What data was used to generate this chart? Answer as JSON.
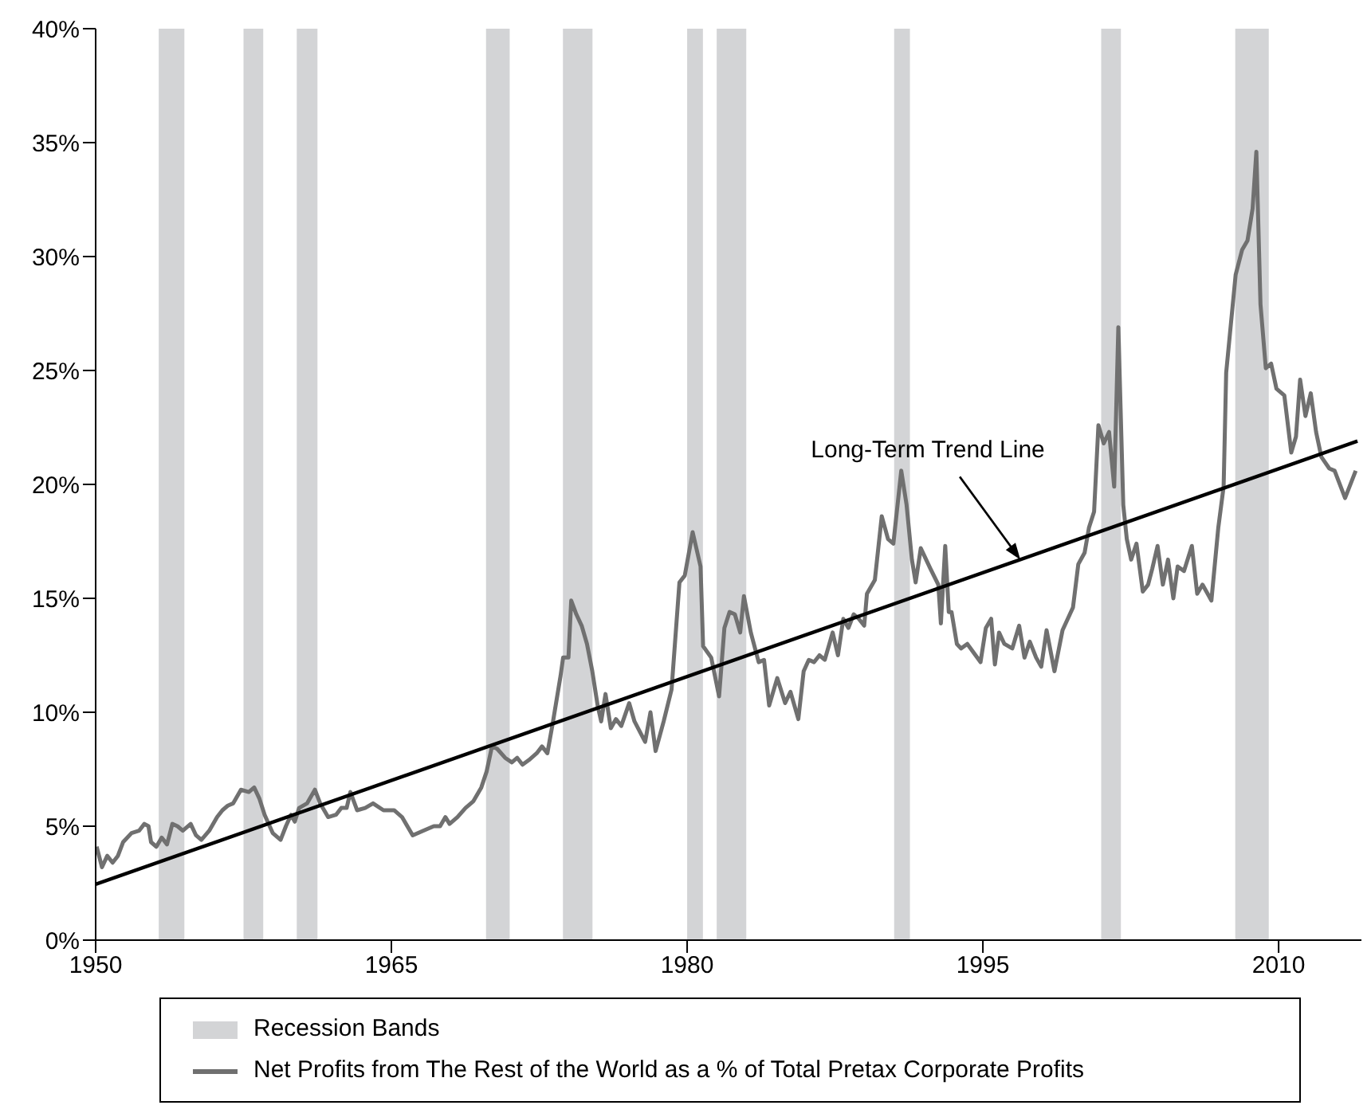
{
  "chart_data": {
    "type": "line",
    "xlim": [
      1950,
      2014.2
    ],
    "xticks": [
      1950,
      1965,
      1980,
      1995,
      2010
    ],
    "ylim": [
      0,
      40
    ],
    "yticks": [
      {
        "value": 0,
        "label": "0%"
      },
      {
        "value": 5,
        "label": "5%"
      },
      {
        "value": 10,
        "label": "10%"
      },
      {
        "value": 15,
        "label": "15%"
      },
      {
        "value": 20,
        "label": "20%"
      },
      {
        "value": 25,
        "label": "25%"
      },
      {
        "value": 30,
        "label": "30%"
      },
      {
        "value": 35,
        "label": "35%"
      },
      {
        "value": 40,
        "label": "40%"
      }
    ],
    "legend": "bottom",
    "marker": "none",
    "series": [
      {
        "name": "Net Profits from The Rest of the World as a % of Total Pretax Corporate Profits",
        "color": "#707070",
        "x": [
          1950.05,
          1950.32,
          1950.59,
          1950.86,
          1951.13,
          1951.39,
          1951.82,
          1952.2,
          1952.47,
          1952.68,
          1952.81,
          1953.08,
          1953.35,
          1953.62,
          1953.89,
          1954.15,
          1954.42,
          1954.82,
          1955.09,
          1955.36,
          1955.76,
          1956.16,
          1956.43,
          1956.7,
          1956.97,
          1957.37,
          1957.77,
          1958.04,
          1958.31,
          1958.57,
          1958.98,
          1959.38,
          1959.65,
          1959.91,
          1960.1,
          1960.32,
          1960.72,
          1961.12,
          1961.39,
          1961.79,
          1962.19,
          1962.46,
          1962.73,
          1962.92,
          1963.26,
          1963.67,
          1964.07,
          1964.6,
          1965.14,
          1965.54,
          1966.08,
          1966.61,
          1967.15,
          1967.47,
          1967.74,
          1967.95,
          1968.35,
          1968.76,
          1969.16,
          1969.56,
          1969.83,
          1970.1,
          1970.36,
          1970.77,
          1971.11,
          1971.38,
          1971.65,
          1971.97,
          1972.37,
          1972.64,
          1972.91,
          1973.18,
          1973.58,
          1973.71,
          1973.98,
          1974.12,
          1974.38,
          1974.65,
          1974.92,
          1975.19,
          1975.46,
          1975.64,
          1975.86,
          1976.13,
          1976.39,
          1976.66,
          1977.06,
          1977.33,
          1977.87,
          1978.14,
          1978.4,
          1978.81,
          1979.21,
          1979.61,
          1979.88,
          1980.28,
          1980.68,
          1980.81,
          1981.22,
          1981.62,
          1981.89,
          1982.15,
          1982.42,
          1982.69,
          1982.88,
          1983.23,
          1983.63,
          1983.9,
          1984.16,
          1984.57,
          1984.97,
          1985.24,
          1985.64,
          1985.91,
          1986.17,
          1986.44,
          1986.71,
          1986.98,
          1987.38,
          1987.65,
          1987.92,
          1988.18,
          1988.45,
          1988.71,
          1988.98,
          1989.12,
          1989.52,
          1989.87,
          1990.19,
          1990.46,
          1990.86,
          1991.13,
          1991.4,
          1991.59,
          1991.85,
          1992.34,
          1992.74,
          1992.87,
          1993.09,
          1993.27,
          1993.41,
          1993.68,
          1993.89,
          1994.21,
          1994.88,
          1995.15,
          1995.42,
          1995.61,
          1995.82,
          1996.09,
          1996.49,
          1996.84,
          1997.11,
          1997.38,
          1997.7,
          1997.96,
          1998.23,
          1998.63,
          1999.04,
          1999.57,
          1999.84,
          2000.16,
          2000.38,
          2000.64,
          2000.86,
          2001.13,
          2001.4,
          2001.66,
          2001.87,
          2002.12,
          2002.3,
          2002.52,
          2002.79,
          2003.11,
          2003.38,
          2003.59,
          2003.86,
          2004.13,
          2004.39,
          2004.66,
          2004.88,
          2005.2,
          2005.6,
          2005.87,
          2006.14,
          2006.4,
          2006.59,
          2006.94,
          2007.21,
          2007.34,
          2007.82,
          2008.15,
          2008.42,
          2008.68,
          2008.87,
          2009.08,
          2009.35,
          2009.62,
          2009.89,
          2010.29,
          2010.64,
          2010.88,
          2011.09,
          2011.36,
          2011.63,
          2011.9,
          2012.17,
          2012.57,
          2012.84,
          2013.37,
          2013.91
        ],
        "values": [
          4.1,
          3.2,
          3.7,
          3.4,
          3.7,
          4.3,
          4.7,
          4.8,
          5.1,
          5.0,
          4.3,
          4.1,
          4.5,
          4.2,
          5.1,
          5.0,
          4.8,
          5.1,
          4.6,
          4.4,
          4.8,
          5.4,
          5.7,
          5.9,
          6.0,
          6.6,
          6.5,
          6.7,
          6.2,
          5.5,
          4.7,
          4.4,
          5.0,
          5.5,
          5.2,
          5.8,
          6.0,
          6.6,
          6.0,
          5.4,
          5.5,
          5.8,
          5.8,
          6.5,
          5.7,
          5.8,
          6.0,
          5.7,
          5.7,
          5.4,
          4.6,
          4.8,
          5.0,
          5.0,
          5.4,
          5.1,
          5.4,
          5.8,
          6.1,
          6.7,
          7.4,
          8.5,
          8.4,
          8.0,
          7.8,
          8.0,
          7.7,
          7.9,
          8.2,
          8.5,
          8.2,
          9.5,
          11.6,
          12.4,
          12.4,
          14.9,
          14.3,
          13.8,
          13.0,
          11.8,
          10.3,
          9.6,
          10.8,
          9.3,
          9.7,
          9.4,
          10.4,
          9.6,
          8.7,
          10.0,
          8.3,
          9.6,
          11.0,
          15.7,
          16.0,
          17.9,
          16.4,
          12.9,
          12.4,
          10.7,
          13.7,
          14.4,
          14.3,
          13.5,
          15.1,
          13.5,
          12.2,
          12.3,
          10.3,
          11.5,
          10.4,
          10.9,
          9.7,
          11.8,
          12.3,
          12.2,
          12.5,
          12.3,
          13.5,
          12.5,
          14.1,
          13.7,
          14.3,
          14.1,
          13.8,
          15.2,
          15.8,
          18.6,
          17.6,
          17.4,
          20.6,
          19.1,
          16.7,
          15.7,
          17.2,
          16.3,
          15.6,
          13.9,
          17.3,
          14.4,
          14.4,
          13.0,
          12.8,
          13.0,
          12.2,
          13.7,
          14.1,
          12.1,
          13.5,
          13.0,
          12.8,
          13.8,
          12.4,
          13.1,
          12.4,
          12.0,
          13.6,
          11.8,
          13.6,
          14.6,
          16.5,
          17.0,
          18.1,
          18.8,
          22.6,
          21.8,
          22.3,
          19.9,
          26.9,
          19.1,
          17.6,
          16.7,
          17.4,
          15.3,
          15.6,
          16.3,
          17.3,
          15.6,
          16.7,
          15.0,
          16.4,
          16.2,
          17.3,
          15.2,
          15.6,
          15.2,
          14.9,
          18.1,
          19.9,
          24.9,
          29.2,
          30.3,
          30.7,
          32.1,
          34.6,
          27.9,
          25.1,
          25.3,
          24.2,
          23.9,
          21.4,
          22.1,
          24.6,
          23.0,
          24.0,
          22.3,
          21.2,
          20.7,
          20.6,
          19.4,
          20.6
        ]
      },
      {
        "type": "line",
        "color": "#000000",
        "x": [
          1950,
          2014
        ],
        "values": [
          2.45,
          21.9
        ]
      }
    ],
    "bands": [
      {
        "axis": "x",
        "from": 1953.2,
        "to": 1954.5,
        "label": "Recession Bands",
        "color": "#d3d4d6"
      },
      {
        "axis": "x",
        "from": 1957.5,
        "to": 1958.5,
        "color": "#d3d4d6"
      },
      {
        "axis": "x",
        "from": 1960.2,
        "to": 1961.25,
        "color": "#d3d4d6"
      },
      {
        "axis": "x",
        "from": 1969.8,
        "to": 1971.0,
        "color": "#d3d4d6"
      },
      {
        "axis": "x",
        "from": 1973.7,
        "to": 1975.2,
        "color": "#d3d4d6"
      },
      {
        "axis": "x",
        "from": 1980.0,
        "to": 1980.8,
        "color": "#d3d4d6"
      },
      {
        "axis": "x",
        "from": 1981.5,
        "to": 1983.0,
        "color": "#d3d4d6"
      },
      {
        "axis": "x",
        "from": 1990.5,
        "to": 1991.3,
        "color": "#d3d4d6"
      },
      {
        "axis": "x",
        "from": 2001.0,
        "to": 2002.0,
        "color": "#d3d4d6"
      },
      {
        "axis": "x",
        "from": 2007.8,
        "to": 2009.5,
        "color": "#d3d4d6"
      }
    ],
    "annotations": [
      {
        "text": "Long-Term Trend Line",
        "x": 1996.9,
        "y": 16.7
      }
    ]
  }
}
